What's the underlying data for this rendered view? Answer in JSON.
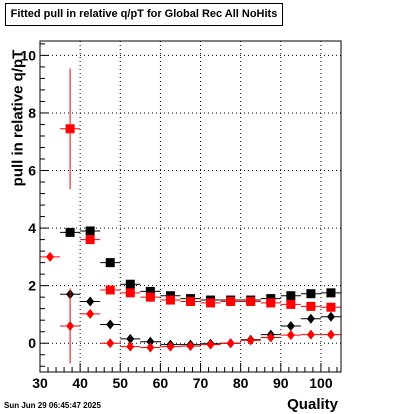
{
  "title": "Fitted pull in relative q/pT for Global Rec All NoHits",
  "datestamp": "Sun Jun 29 06:45:47 2025",
  "chart_data": {
    "type": "scatter",
    "title": "Fitted pull in relative q/pT for Global Rec All NoHits",
    "xlabel": "Quality",
    "ylabel": "pull in relative q/pT",
    "xlim": [
      30,
      105
    ],
    "ylim": [
      -1,
      10.5
    ],
    "xticks": [
      30,
      40,
      50,
      60,
      70,
      80,
      90,
      100
    ],
    "yticks": [
      0,
      2,
      4,
      6,
      8,
      10
    ],
    "grid": true,
    "series": [
      {
        "color": "#000000",
        "marker": "square",
        "x": [
          37.5,
          42.5,
          47.5,
          52.5,
          57.5,
          62.5,
          67.5,
          72.5,
          77.5,
          82.5,
          87.5,
          92.5,
          97.5,
          102.5
        ],
        "y": [
          3.85,
          3.9,
          2.8,
          2.05,
          1.8,
          1.65,
          1.55,
          1.5,
          1.5,
          1.5,
          1.55,
          1.65,
          1.72,
          1.75
        ],
        "yerr": [
          0.15,
          0.08,
          0.05,
          0.04,
          0.03,
          0.03,
          0.03,
          0.03,
          0.03,
          0.03,
          0.03,
          0.03,
          0.03,
          0.03
        ]
      },
      {
        "color": "#ff0000",
        "marker": "square",
        "x": [
          37.5,
          42.5,
          47.5,
          52.5,
          57.5,
          62.5,
          67.5,
          72.5,
          77.5,
          82.5,
          87.5,
          92.5,
          97.5,
          102.5
        ],
        "y": [
          7.45,
          3.6,
          1.85,
          1.75,
          1.6,
          1.5,
          1.45,
          1.4,
          1.45,
          1.45,
          1.4,
          1.35,
          1.28,
          1.25
        ],
        "yerr": [
          2.1,
          0.12,
          0.06,
          0.04,
          0.03,
          0.03,
          0.03,
          0.03,
          0.03,
          0.03,
          0.03,
          0.03,
          0.03,
          0.03
        ]
      },
      {
        "color": "#000000",
        "marker": "diamond",
        "x": [
          37.5,
          42.5,
          47.5,
          52.5,
          57.5,
          62.5,
          67.5,
          72.5,
          77.5,
          82.5,
          87.5,
          92.5,
          97.5,
          102.5
        ],
        "y": [
          1.7,
          1.45,
          0.65,
          0.15,
          0.05,
          -0.05,
          -0.05,
          -0.02,
          0.0,
          0.12,
          0.3,
          0.6,
          0.85,
          0.92
        ],
        "yerr": [
          0.12,
          0.06,
          0.04,
          0.03,
          0.03,
          0.03,
          0.03,
          0.03,
          0.03,
          0.03,
          0.03,
          0.03,
          0.03,
          0.03
        ]
      },
      {
        "color": "#ff0000",
        "marker": "diamond",
        "x": [
          32.5,
          37.5,
          42.5,
          47.5,
          52.5,
          57.5,
          62.5,
          67.5,
          72.5,
          77.5,
          82.5,
          87.5,
          92.5,
          97.5,
          102.5
        ],
        "y": [
          3.0,
          0.6,
          1.02,
          0.0,
          -0.12,
          -0.15,
          -0.12,
          -0.1,
          -0.05,
          0.0,
          0.1,
          0.2,
          0.28,
          0.3,
          0.3
        ],
        "yerr": [
          0.1,
          1.3,
          0.1,
          0.04,
          0.03,
          0.03,
          0.03,
          0.03,
          0.03,
          0.03,
          0.03,
          0.03,
          0.03,
          0.03,
          0.03
        ]
      }
    ]
  }
}
